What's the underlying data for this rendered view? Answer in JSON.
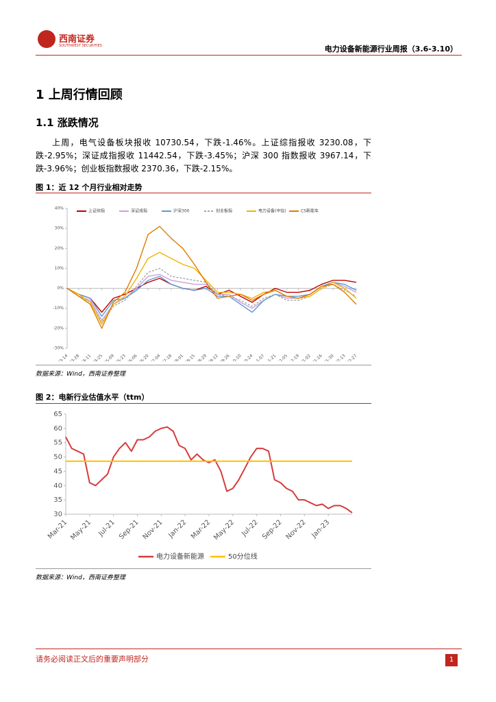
{
  "header": {
    "logo": "西南证券",
    "logo_sub": "SOUTHWEST SECURITIES",
    "title": "电力设备新能源行业周报（3.6-3.10）"
  },
  "heading1": "1 上周行情回顾",
  "heading2": "1.1 涨跌情况",
  "paragraph": "上周，电气设备板块报收 10730.54，下跌-1.46%。上证综指报收 3230.08，下跌-2.95%；深证成指报收 11442.54，下跌-3.45%；沪深 300 指数报收 3967.14，下跌-3.96%；创业板指数报收 2370.36，下跌-2.15%。",
  "figures": [
    {
      "caption": "图 1：近 12 个月行业相对走势",
      "source": "数据来源：Wind，西南证券整理",
      "chart_data": {
        "type": "line",
        "legend": "top",
        "categories": [
          "03-14",
          "03-28",
          "04-11",
          "04-25",
          "05-09",
          "05-23",
          "06-06",
          "06-20",
          "07-04",
          "07-18",
          "08-01",
          "08-15",
          "08-29",
          "09-12",
          "09-26",
          "10-10",
          "10-24",
          "11-07",
          "11-21",
          "12-05",
          "12-19",
          "01-02",
          "01-16",
          "01-30",
          "02-13",
          "02-27"
        ],
        "ylim": [
          -30,
          40
        ],
        "yticks": [
          {
            "value": 40,
            "label": "40%"
          },
          {
            "value": 30,
            "label": "30%"
          },
          {
            "value": 20,
            "label": "20%"
          },
          {
            "value": 10,
            "label": "10%"
          },
          {
            "value": 0,
            "label": "0%"
          },
          {
            "value": -10,
            "label": "-10%"
          },
          {
            "value": -20,
            "label": "-20%"
          },
          {
            "value": -30,
            "label": "-30%"
          }
        ],
        "series": [
          {
            "name": "上证综指",
            "color": "#c00000",
            "values": [
              0,
              -3,
              -5,
              -12,
              -5,
              -3,
              0,
              3,
              5,
              2,
              0,
              -1,
              1,
              -3,
              -1,
              -4,
              -7,
              -3,
              0,
              -2,
              -2,
              -1,
              2,
              4,
              4,
              3
            ]
          },
          {
            "name": "深证成指",
            "color": "#c9a0e0",
            "values": [
              0,
              -4,
              -6,
              -16,
              -8,
              -5,
              0,
              6,
              7,
              4,
              3,
              2,
              2,
              -3,
              -3,
              -7,
              -10,
              -6,
              -3,
              -5,
              -5,
              -3,
              1,
              3,
              1,
              -2
            ]
          },
          {
            "name": "沪深300",
            "color": "#5b9bd5",
            "values": [
              0,
              -3,
              -5,
              -14,
              -6,
              -5,
              -1,
              4,
              6,
              2,
              0,
              -1,
              0,
              -4,
              -4,
              -8,
              -12,
              -6,
              -3,
              -4,
              -4,
              -3,
              1,
              3,
              2,
              -1
            ]
          },
          {
            "name": "创业板指",
            "color": "#a5a5a5",
            "line_style": "dashed",
            "values": [
              0,
              -4,
              -7,
              -17,
              -9,
              -6,
              1,
              8,
              10,
              6,
              5,
              4,
              3,
              -3,
              -4,
              -6,
              -9,
              -5,
              -3,
              -6,
              -6,
              -4,
              0,
              2,
              -1,
              -4
            ]
          },
          {
            "name": "电力设备(中信)",
            "color": "#f0b400",
            "values": [
              0,
              -3,
              -7,
              -18,
              -8,
              -4,
              5,
              15,
              18,
              15,
              12,
              10,
              4,
              -2,
              -2,
              -3,
              -5,
              -2,
              -1,
              -4,
              -5,
              -4,
              0,
              3,
              0,
              -5
            ]
          },
          {
            "name": "CS新能车",
            "color": "#e07b00",
            "values": [
              0,
              -4,
              -8,
              -20,
              -7,
              -2,
              10,
              27,
              31,
              25,
              20,
              12,
              3,
              -5,
              -4,
              -3,
              -6,
              -3,
              -1,
              -4,
              -5,
              -3,
              1,
              2,
              -2,
              -8
            ]
          }
        ]
      }
    },
    {
      "caption": "图 2：电新行业估值水平（ttm）",
      "source": "数据来源：Wind，西南证券整理",
      "chart_data": {
        "type": "line",
        "legend": "bottom",
        "categories": [
          "Mar-21",
          null,
          null,
          null,
          "May-21",
          null,
          null,
          null,
          "Jul-21",
          null,
          null,
          null,
          "Sep-21",
          null,
          null,
          null,
          "Nov-21",
          null,
          null,
          null,
          "Jan-22",
          null,
          null,
          null,
          "Mar-22",
          null,
          null,
          null,
          "May-22",
          null,
          null,
          null,
          "Jul-22",
          null,
          null,
          null,
          "Sep-22",
          null,
          null,
          null,
          "Nov-22",
          null,
          null,
          null,
          "Jan-23",
          null,
          null,
          null,
          null
        ],
        "ylim": [
          30,
          65
        ],
        "yticks": [
          30,
          35,
          40,
          45,
          50,
          55,
          60,
          65
        ],
        "series": [
          {
            "name": "电力设备新能源",
            "color": "#d63a3a",
            "values": [
              57,
              53,
              52,
              51,
              41,
              40,
              42,
              44,
              50,
              53,
              55,
              52,
              56,
              56,
              57,
              59,
              60,
              60.5,
              59,
              54,
              53,
              49,
              51,
              49,
              48,
              49,
              45,
              38,
              39,
              42,
              46,
              50,
              53,
              53,
              52,
              42,
              41,
              39,
              38,
              35,
              35,
              34,
              33,
              33.5,
              32,
              33,
              33,
              32,
              30.5
            ]
          },
          {
            "name": "50分位线",
            "color": "#ffc000",
            "values": [
              48.5,
              48.5,
              48.5,
              48.5,
              48.5,
              48.5,
              48.5,
              48.5,
              48.5,
              48.5,
              48.5,
              48.5,
              48.5,
              48.5,
              48.5,
              48.5,
              48.5,
              48.5,
              48.5,
              48.5,
              48.5,
              48.5,
              48.5,
              48.5,
              48.5,
              48.5,
              48.5,
              48.5,
              48.5,
              48.5,
              48.5,
              48.5,
              48.5,
              48.5,
              48.5,
              48.5,
              48.5,
              48.5,
              48.5,
              48.5,
              48.5,
              48.5,
              48.5,
              48.5,
              48.5,
              48.5,
              48.5,
              48.5,
              48.5
            ]
          }
        ]
      }
    }
  ],
  "footer": {
    "notice": "请务必阅读正文后的重要声明部分",
    "page": "1"
  }
}
